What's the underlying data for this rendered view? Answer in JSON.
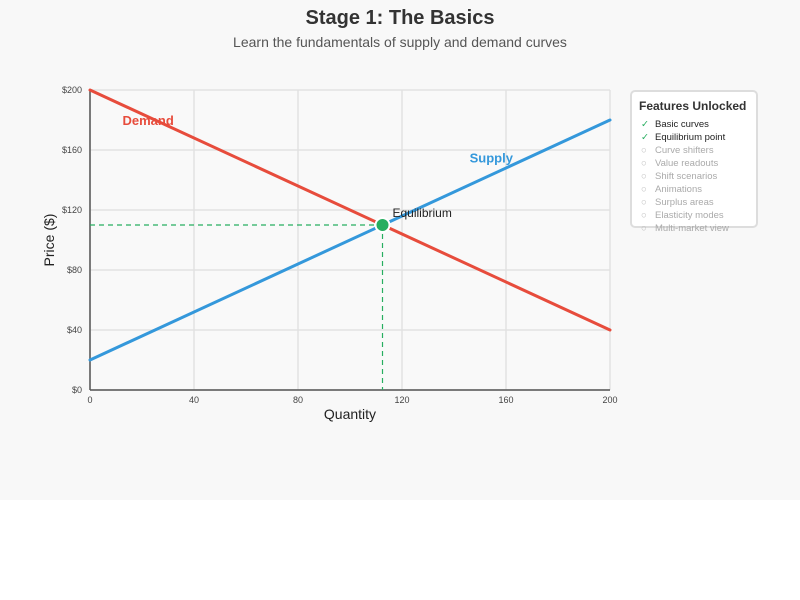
{
  "page": {
    "title": "Stage 1: The Basics",
    "subtitle": "Learn the fundamentals of supply and demand curves"
  },
  "chart_data": {
    "type": "line",
    "xlabel": "Quantity",
    "ylabel": "Price ($)",
    "xlim": [
      0,
      200
    ],
    "ylim": [
      0,
      200
    ],
    "x_ticks": [
      "0",
      "40",
      "80",
      "120",
      "160",
      "200"
    ],
    "y_ticks": [
      "$0",
      "$40",
      "$80",
      "$120",
      "$160",
      "$200"
    ],
    "grid": true,
    "series": [
      {
        "name": "Demand",
        "color": "#e74c3c",
        "x": [
          0,
          200
        ],
        "y": [
          200,
          40
        ]
      },
      {
        "name": "Supply",
        "color": "#3498db",
        "x": [
          0,
          200
        ],
        "y": [
          20,
          180
        ]
      }
    ],
    "equilibrium": {
      "label": "Equilibrium",
      "x": 112.5,
      "y": 110,
      "color": "#27ae60"
    }
  },
  "features_panel": {
    "title": "Features Unlocked",
    "items": [
      {
        "label": "Basic curves",
        "unlocked": true,
        "mark": "✓"
      },
      {
        "label": "Equilibrium point",
        "unlocked": true,
        "mark": "✓"
      },
      {
        "label": "Curve shifters",
        "unlocked": false,
        "mark": "○"
      },
      {
        "label": "Value readouts",
        "unlocked": false,
        "mark": "○"
      },
      {
        "label": "Shift scenarios",
        "unlocked": false,
        "mark": "○"
      },
      {
        "label": "Animations",
        "unlocked": false,
        "mark": "○"
      },
      {
        "label": "Surplus areas",
        "unlocked": false,
        "mark": "○"
      },
      {
        "label": "Elasticity modes",
        "unlocked": false,
        "mark": "○"
      },
      {
        "label": "Multi-market view",
        "unlocked": false,
        "mark": "○"
      }
    ]
  }
}
